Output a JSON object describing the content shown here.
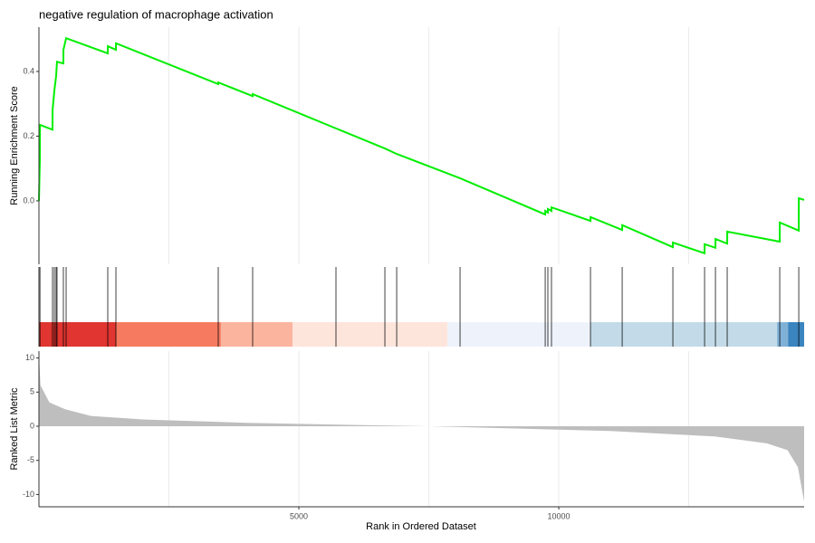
{
  "chart_data": [
    {
      "type": "line",
      "title": "negative regulation of macrophage activation",
      "ylabel": "Running Enrichment Score",
      "x": [
        0,
        18,
        20,
        261,
        262,
        296,
        330,
        348,
        470,
        471,
        523,
        1324,
        1325,
        1481,
        1482,
        3449,
        3450,
        4111,
        4112,
        5714,
        6655,
        6882,
        8101,
        9739,
        9740,
        9790,
        9791,
        9860,
        9861,
        10610,
        10611,
        11220,
        11221,
        12195,
        12196,
        12805,
        12806,
        13014,
        13015,
        13240,
        13241,
        14251,
        14252,
        14617,
        14618,
        14720
      ],
      "values": [
        0.0,
        0.13,
        0.235,
        0.22,
        0.28,
        0.34,
        0.385,
        0.43,
        0.425,
        0.467,
        0.503,
        0.456,
        0.478,
        0.467,
        0.487,
        0.361,
        0.366,
        0.324,
        0.33,
        0.224,
        0.162,
        0.145,
        0.07,
        -0.042,
        -0.031,
        -0.036,
        -0.025,
        -0.031,
        -0.02,
        -0.062,
        -0.05,
        -0.09,
        -0.075,
        -0.143,
        -0.129,
        -0.162,
        -0.134,
        -0.145,
        -0.118,
        -0.132,
        -0.095,
        -0.126,
        -0.067,
        -0.092,
        0.008,
        0.003
      ],
      "color": "#00ee00",
      "xlim": [
        0,
        14720
      ],
      "ylim": [
        -0.196,
        0.537
      ],
      "yticks": [
        {
          "value": 0,
          "label": "0.0"
        },
        0.2,
        0.4
      ],
      "xgrid": [
        2500,
        5000,
        7500,
        10000,
        12500
      ]
    },
    {
      "type": "rug",
      "hits": [
        0,
        20,
        261,
        296,
        330,
        348,
        470,
        523,
        1324,
        1481,
        3449,
        4111,
        5714,
        6655,
        6882,
        8101,
        9739,
        9790,
        9860,
        10610,
        11220,
        12195,
        12805,
        13014,
        13240,
        14251,
        14617
      ],
      "color": "#000000",
      "xlim": [
        0,
        14720
      ],
      "band": {
        "edges": [
          0,
          1481,
          3500,
          4880,
          7860,
          10610,
          14200,
          14410,
          14720
        ],
        "colors": [
          "#e03530",
          "#f57a60",
          "#fbb49e",
          "#fde5dc",
          "#eef3fb",
          "#c3dbe8",
          "#7fb1d6",
          "#3a84bf"
        ]
      }
    },
    {
      "type": "area",
      "ylabel": "Ranked List Metric",
      "xlabel": "Rank in Ordered Dataset",
      "x": [
        0,
        30,
        200,
        500,
        1000,
        2000,
        4000,
        6000,
        7500,
        9000,
        11000,
        13000,
        14000,
        14400,
        14600,
        14720
      ],
      "values": [
        10.5,
        6,
        3.5,
        2.5,
        1.5,
        1,
        0.5,
        0.2,
        0,
        -0.3,
        -0.7,
        -1.5,
        -2.5,
        -3.5,
        -6,
        -11
      ],
      "color": "#bebebe",
      "xlim": [
        0,
        14720
      ],
      "ylim": [
        -11.8,
        11
      ],
      "yticks": [
        -10,
        -5,
        0,
        5,
        10
      ],
      "xticks": [
        5000,
        10000
      ],
      "xgrid": [
        2500,
        5000,
        7500,
        10000,
        12500
      ]
    }
  ]
}
